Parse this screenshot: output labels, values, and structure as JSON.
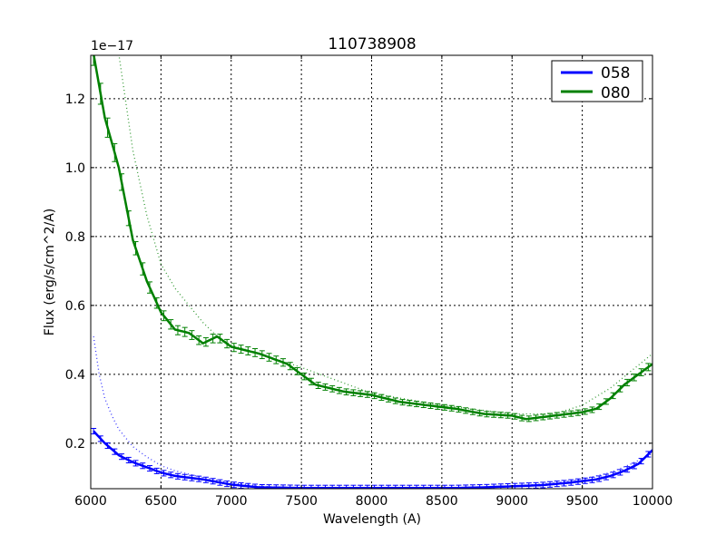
{
  "chart_data": {
    "type": "line",
    "title": "110738908",
    "xlabel": "Wavelength (A)",
    "ylabel": "Flux (erg/s/cm^2/A)",
    "y_offset_label": "1e−17",
    "xlim": [
      6000,
      10000
    ],
    "ylim": [
      0.068,
      1.326
    ],
    "y_scale_multiplier": 1e-17,
    "xticks": [
      6000,
      6500,
      7000,
      7500,
      8000,
      8500,
      9000,
      9500,
      10000
    ],
    "xtick_labels": [
      "6000",
      "6500",
      "7000",
      "7500",
      "8000",
      "8500",
      "9000",
      "9500",
      "10000"
    ],
    "yticks": [
      0.2,
      0.4,
      0.6,
      0.8,
      1.0,
      1.2
    ],
    "ytick_labels": [
      "0.2",
      "0.4",
      "0.6",
      "0.8",
      "1.0",
      "1.2"
    ],
    "grid": true,
    "grid_style": "dotted",
    "legend_position": "upper right",
    "legend": [
      "058",
      "080"
    ],
    "series": [
      {
        "name": "058",
        "color": "#0000ff",
        "style": "solid with error bars",
        "x": [
          6020,
          6100,
          6200,
          6300,
          6400,
          6500,
          6600,
          6800,
          7000,
          7200,
          7500,
          7800,
          8000,
          8300,
          8600,
          8800,
          9000,
          9200,
          9400,
          9600,
          9700,
          9800,
          9900,
          10000
        ],
        "values": [
          0.235,
          0.2,
          0.165,
          0.145,
          0.13,
          0.115,
          0.105,
          0.095,
          0.08,
          0.072,
          0.07,
          0.07,
          0.07,
          0.07,
          0.07,
          0.072,
          0.075,
          0.078,
          0.085,
          0.095,
          0.105,
          0.12,
          0.14,
          0.18
        ]
      },
      {
        "name": "058 model",
        "color": "#0000ff",
        "style": "dotted",
        "x": [
          6020,
          6060,
          6100,
          6150,
          6200,
          6300,
          6400,
          6500,
          6600,
          6800,
          7000,
          7200,
          7500,
          8000,
          8500,
          9000,
          9300,
          9500,
          9700,
          9850,
          10000
        ],
        "values": [
          0.51,
          0.4,
          0.33,
          0.28,
          0.24,
          0.19,
          0.16,
          0.135,
          0.12,
          0.1,
          0.085,
          0.075,
          0.07,
          0.07,
          0.07,
          0.075,
          0.085,
          0.095,
          0.115,
          0.14,
          0.17
        ]
      },
      {
        "name": "080",
        "color": "#008000",
        "style": "solid with error bars",
        "x": [
          6020,
          6100,
          6200,
          6300,
          6400,
          6500,
          6600,
          6700,
          6800,
          6900,
          7000,
          7200,
          7400,
          7600,
          7800,
          8000,
          8200,
          8400,
          8600,
          8800,
          9000,
          9100,
          9300,
          9500,
          9600,
          9700,
          9800,
          9900,
          10000
        ],
        "values": [
          1.33,
          1.145,
          1.0,
          0.79,
          0.67,
          0.58,
          0.53,
          0.52,
          0.49,
          0.51,
          0.48,
          0.46,
          0.43,
          0.37,
          0.35,
          0.34,
          0.32,
          0.31,
          0.3,
          0.285,
          0.28,
          0.27,
          0.28,
          0.29,
          0.3,
          0.33,
          0.37,
          0.4,
          0.43
        ]
      },
      {
        "name": "080 model",
        "color": "#008000",
        "style": "dotted",
        "x": [
          6200,
          6300,
          6400,
          6500,
          6600,
          6700,
          6800,
          6900,
          7000,
          7200,
          7500,
          8000,
          8500,
          9000,
          9300,
          9500,
          9700,
          9850,
          10000
        ],
        "values": [
          1.33,
          1.05,
          0.86,
          0.72,
          0.65,
          0.6,
          0.55,
          0.51,
          0.485,
          0.46,
          0.42,
          0.345,
          0.31,
          0.285,
          0.285,
          0.31,
          0.36,
          0.41,
          0.46
        ]
      }
    ]
  }
}
